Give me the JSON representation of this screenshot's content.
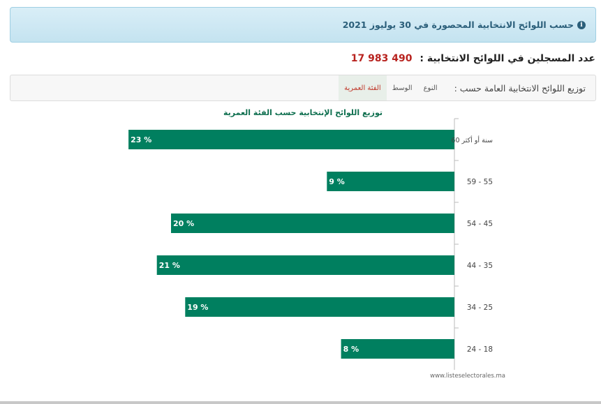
{
  "banner": {
    "text": "حسب اللوائح الانتخابية المحصورة في 30 يوليوز 2021"
  },
  "registered": {
    "label": "عدد المسجلين في اللوائح الانتخابية :",
    "value": "490 983 17"
  },
  "tabs": {
    "label": "توزيع اللوائح الانتخابية العامة حسب :",
    "items": [
      {
        "label": "النوع",
        "active": false
      },
      {
        "label": "الوسط",
        "active": false
      },
      {
        "label": "الفئة العمرية",
        "active": true
      }
    ]
  },
  "chart_data": {
    "type": "bar",
    "orientation": "horizontal",
    "title": "توزيع اللوائح الإنتخابية حسب الفئة العمرية",
    "categories": [
      "60 سنة أو أكثر",
      "59 - 55",
      "54 - 45",
      "44 - 35",
      "34 - 25",
      "24 - 18"
    ],
    "values": [
      23,
      9,
      20,
      21,
      19,
      8
    ],
    "data_labels": [
      "23 %",
      "9 %",
      "20 %",
      "21 %",
      "19 %",
      "8 %"
    ],
    "bar_color": "#007f5f",
    "credit": "www.listeselectorales.ma",
    "grid": false
  }
}
